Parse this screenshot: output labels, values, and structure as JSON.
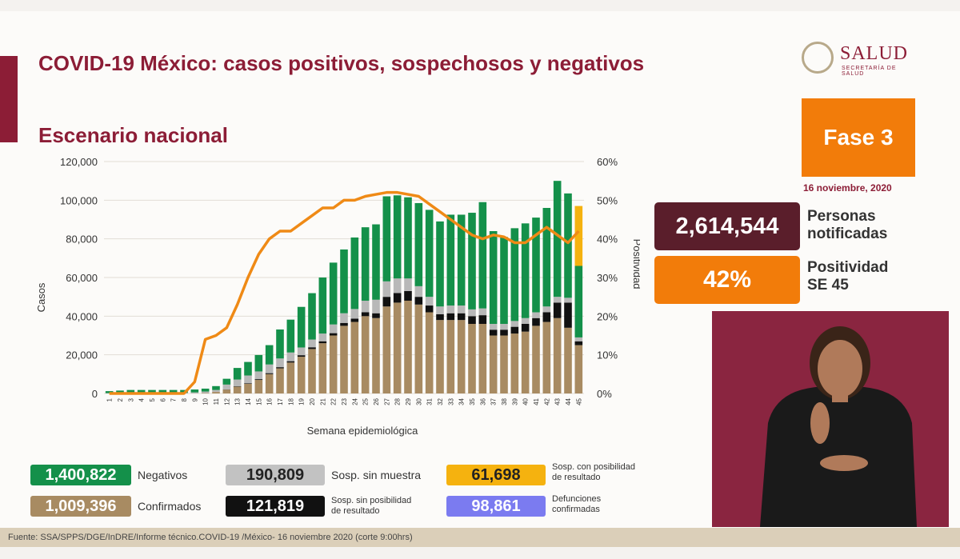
{
  "header": {
    "title": "COVID-19 México: casos positivos, sospechosos y negativos",
    "subtitle": "Escenario nacional",
    "logo_text": "SALUD",
    "logo_subtext": "SECRETARÍA DE SALUD"
  },
  "phase": {
    "label": "Fase 3",
    "date": "16 noviembre, 2020"
  },
  "stats": {
    "notified_value": "2,614,544",
    "notified_label_line1": "Personas",
    "notified_label_line2": "notificadas",
    "positivity_value": "42%",
    "positivity_label_line1": "Positividad",
    "positivity_label_line2": "SE 45"
  },
  "legend": {
    "negativos_value": "1,400,822",
    "negativos_label": "Negativos",
    "confirmados_value": "1,009,396",
    "confirmados_label": "Confirmados",
    "sosp_sin_muestra_value": "190,809",
    "sosp_sin_muestra_label": "Sosp. sin muestra",
    "sosp_sin_pos_value": "121,819",
    "sosp_sin_pos_label1": "Sosp. sin posibilidad",
    "sosp_sin_pos_label2": "de resultado",
    "sosp_con_pos_value": "61,698",
    "sosp_con_pos_label1": "Sosp. con posibilidad",
    "sosp_con_pos_label2": "de resultado",
    "defunciones_value": "98,861",
    "defunciones_label1": "Defunciones",
    "defunciones_label2": "confirmadas"
  },
  "footer": "Fuente: SSA/SPPS/DGE/InDRE/Informe técnico.COVID-19 /México- 16 noviembre 2020 (corte 9:00hrs)",
  "colors": {
    "confirmados": "#a88b62",
    "sosp_sin_pos": "#111111",
    "sosp_sin_muestra": "#b8b8b8",
    "negativos": "#14904a",
    "sosp_con_pos": "#f5b20f",
    "positividad": "#ef8a16",
    "defunciones": "#7b7bf0",
    "title": "#8c1d36"
  },
  "chart_data": {
    "type": "bar",
    "stacked": true,
    "xlabel": "Semana epidemiológica",
    "ylabel": "Casos",
    "y2label": "Positividad",
    "ylim": [
      0,
      120000
    ],
    "y2lim": [
      0,
      60
    ],
    "yticks": [
      "0",
      "20,000",
      "40,000",
      "60,000",
      "80,000",
      "100,000",
      "120,000"
    ],
    "y2ticks": [
      "0%",
      "10%",
      "20%",
      "30%",
      "40%",
      "50%",
      "60%"
    ],
    "categories": [
      "1",
      "2",
      "3",
      "4",
      "5",
      "6",
      "7",
      "8",
      "9",
      "10",
      "11",
      "12",
      "13",
      "14",
      "15",
      "16",
      "17",
      "18",
      "19",
      "20",
      "21",
      "22",
      "23",
      "24",
      "25",
      "26",
      "27",
      "28",
      "29",
      "30",
      "31",
      "32",
      "33",
      "34",
      "35",
      "36",
      "37",
      "38",
      "39",
      "40",
      "41",
      "42",
      "43",
      "44",
      "45"
    ],
    "series": [
      {
        "name": "Confirmados",
        "values": [
          0,
          0,
          0,
          0,
          0,
          0,
          0,
          0,
          50,
          200,
          800,
          2000,
          3500,
          5000,
          7000,
          10000,
          13000,
          16000,
          19000,
          23000,
          26000,
          30000,
          35000,
          37000,
          40000,
          39000,
          45000,
          47000,
          48000,
          46000,
          42000,
          38000,
          38000,
          38000,
          36000,
          36000,
          30000,
          30000,
          31000,
          32000,
          35000,
          37000,
          39000,
          34000,
          25000
        ]
      },
      {
        "name": "Sosp. sin posibilidad de resultado",
        "values": [
          0,
          0,
          0,
          0,
          0,
          0,
          0,
          0,
          0,
          0,
          0,
          100,
          200,
          300,
          400,
          500,
          600,
          700,
          800,
          900,
          1000,
          1200,
          1500,
          1700,
          2000,
          2500,
          5000,
          5000,
          5000,
          4000,
          3500,
          3000,
          3500,
          3500,
          4000,
          4500,
          3000,
          3000,
          3500,
          4000,
          4000,
          5000,
          8000,
          13000,
          2000
        ]
      },
      {
        "name": "Sosp. sin muestra",
        "values": [
          200,
          300,
          300,
          300,
          300,
          300,
          300,
          300,
          500,
          800,
          1000,
          2500,
          3500,
          4000,
          4000,
          4500,
          4500,
          4500,
          4000,
          4000,
          4000,
          4500,
          5000,
          5000,
          6000,
          7000,
          8000,
          7500,
          6500,
          5500,
          4500,
          4000,
          4000,
          4000,
          3500,
          3500,
          3000,
          3000,
          3000,
          3000,
          3000,
          3000,
          3000,
          2500,
          2000
        ]
      },
      {
        "name": "Negativos",
        "values": [
          1000,
          1200,
          1500,
          1500,
          1500,
          1500,
          1500,
          1500,
          1500,
          1500,
          2000,
          3000,
          6000,
          7000,
          8500,
          10000,
          15000,
          17000,
          21000,
          24000,
          29000,
          32000,
          33000,
          37000,
          38000,
          39000,
          44000,
          43000,
          42000,
          43000,
          45000,
          44000,
          47000,
          47000,
          50000,
          55000,
          48000,
          45000,
          48000,
          49000,
          49000,
          51000,
          60000,
          54000,
          37000
        ]
      },
      {
        "name": "Sosp. con posibilidad de resultado",
        "values": [
          0,
          0,
          0,
          0,
          0,
          0,
          0,
          0,
          0,
          0,
          0,
          0,
          0,
          0,
          0,
          0,
          0,
          0,
          0,
          0,
          0,
          0,
          0,
          0,
          0,
          0,
          0,
          0,
          0,
          0,
          0,
          0,
          0,
          0,
          0,
          0,
          0,
          0,
          0,
          0,
          0,
          0,
          0,
          0,
          31000
        ]
      }
    ],
    "line": {
      "name": "Positividad",
      "axis": "right",
      "values": [
        0,
        0,
        0,
        0,
        0,
        0,
        0,
        0,
        3,
        14,
        15,
        17,
        23,
        30,
        36,
        40,
        42,
        42,
        44,
        46,
        48,
        48,
        50,
        50,
        51,
        51.5,
        52,
        52,
        51.5,
        51,
        49,
        47,
        45,
        43,
        41,
        40,
        41,
        40.5,
        39,
        39,
        41,
        43,
        41,
        39,
        42
      ]
    }
  }
}
